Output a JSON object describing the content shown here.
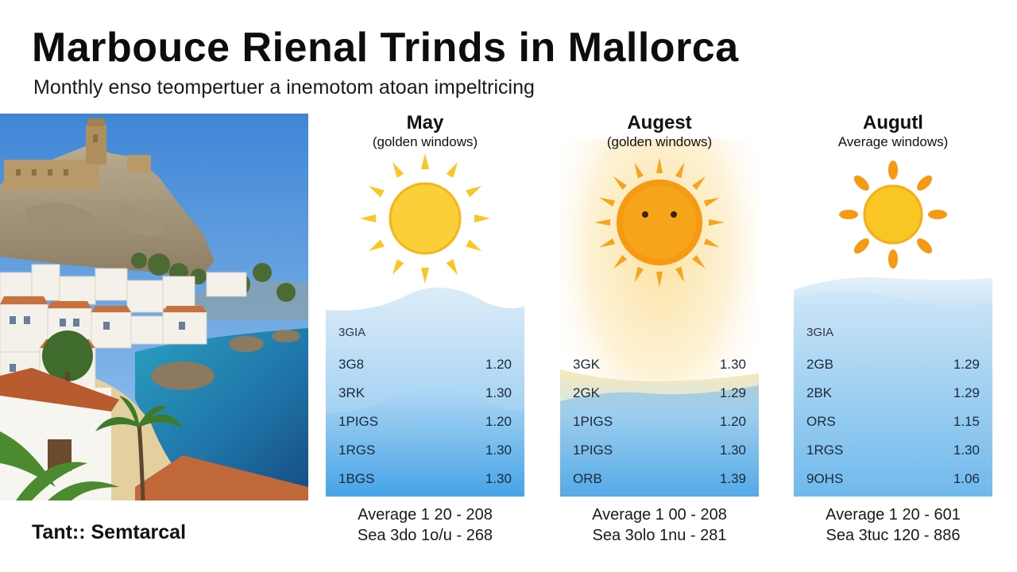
{
  "header": {
    "title": "Marbouce Rienal Trinds in Mallorca",
    "subtitle": "Monthly enso teompertuer a inemotom atoan impeltricing"
  },
  "footer": {
    "label": "Tant:: Semtarcal"
  },
  "colors": {
    "sun_yellow": "#f9c623",
    "sun_orange": "#f59a12",
    "water_blue": "#3ea2e8"
  },
  "cards": [
    {
      "month": "May",
      "caption": "(golden windows)",
      "icon": "sun-icon",
      "header_code": "3GIA",
      "rows": [
        {
          "code": "3G8",
          "value": "1.20"
        },
        {
          "code": "3RK",
          "value": "1.30"
        },
        {
          "code": "1PIGS",
          "value": "1.20"
        },
        {
          "code": "1RGS",
          "value": "1.30"
        },
        {
          "code": "1BGS",
          "value": "1.30"
        }
      ],
      "summary_line1": "Average 1 20 - 208",
      "summary_line2": "Sea 3do 1o/u - 268"
    },
    {
      "month": "Augest",
      "caption": "(golden windows)",
      "icon": "smiling-sun-icon",
      "header_code": "",
      "rows": [
        {
          "code": "3GK",
          "value": "1.30"
        },
        {
          "code": "2GK",
          "value": "1.29"
        },
        {
          "code": "1PIGS",
          "value": "1.20"
        },
        {
          "code": "1PIGS",
          "value": "1.30"
        },
        {
          "code": "ORB",
          "value": "1.39"
        }
      ],
      "summary_line1": "Average 1 00 - 208",
      "summary_line2": "Sea 3olo 1nu - 281"
    },
    {
      "month": "Augutl",
      "caption": "Average windows)",
      "icon": "sun-icon",
      "header_code": "3GIA",
      "rows": [
        {
          "code": "2GB",
          "value": "1.29"
        },
        {
          "code": "2BK",
          "value": "1.29"
        },
        {
          "code": "ORS",
          "value": "1.15"
        },
        {
          "code": "1RGS",
          "value": "1.30"
        },
        {
          "code": "9OHS",
          "value": "1.06"
        }
      ],
      "summary_line1": "Average 1 20 - 601",
      "summary_line2": "Sea 3tuc 120 - 886"
    }
  ]
}
